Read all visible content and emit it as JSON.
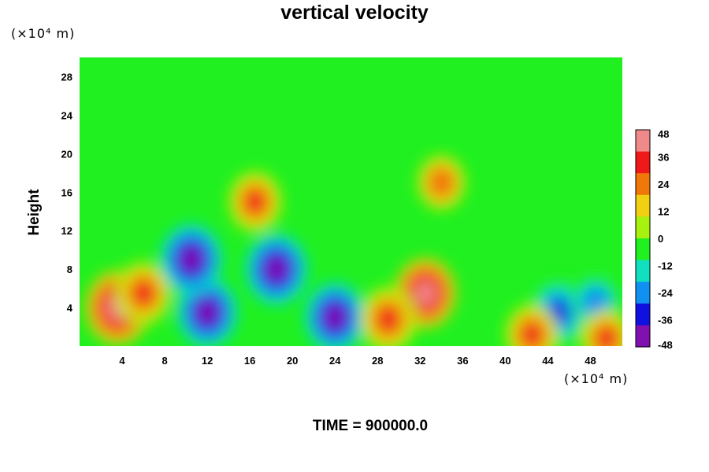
{
  "chart_data": {
    "type": "heatmap",
    "title": "vertical velocity",
    "xlabel": "",
    "ylabel": "Height",
    "x_unit": "(×10⁴ m)",
    "y_unit": "(×10⁴ m)",
    "xlim": [
      0,
      51
    ],
    "ylim": [
      0,
      30
    ],
    "x_ticks": [
      4,
      8,
      12,
      16,
      20,
      24,
      28,
      32,
      36,
      40,
      44,
      48
    ],
    "y_ticks": [
      4,
      8,
      12,
      16,
      20,
      24,
      28
    ],
    "colorbar": {
      "range": [
        -48,
        48
      ],
      "ticks": [
        48,
        36,
        24,
        12,
        0,
        -12,
        -24,
        -36,
        -48
      ],
      "colors": [
        "#f08a8a",
        "#f01818",
        "#f07808",
        "#f0d010",
        "#a8f010",
        "#20f020",
        "#10e0c0",
        "#1090f0",
        "#1010e0",
        "#8010b0"
      ]
    },
    "features": [
      {
        "x": 3.6,
        "y": 4.0,
        "value": 48
      },
      {
        "x": 6.0,
        "y": 5.5,
        "value": 38
      },
      {
        "x": 12.0,
        "y": 3.5,
        "value": -44
      },
      {
        "x": 10.5,
        "y": 9.0,
        "value": -46
      },
      {
        "x": 18.5,
        "y": 8.0,
        "value": -46
      },
      {
        "x": 16.5,
        "y": 15.0,
        "value": 36
      },
      {
        "x": 24.0,
        "y": 3.0,
        "value": -44
      },
      {
        "x": 32.5,
        "y": 5.5,
        "value": 44
      },
      {
        "x": 29.0,
        "y": 2.8,
        "value": 40
      },
      {
        "x": 34.0,
        "y": 17.0,
        "value": 30
      },
      {
        "x": 45.0,
        "y": 3.5,
        "value": -42
      },
      {
        "x": 42.5,
        "y": 1.2,
        "value": 36
      },
      {
        "x": 48.5,
        "y": 4.5,
        "value": -30
      },
      {
        "x": 49.5,
        "y": 0.8,
        "value": 34
      }
    ]
  },
  "time_label": "TIME = 900000.0"
}
